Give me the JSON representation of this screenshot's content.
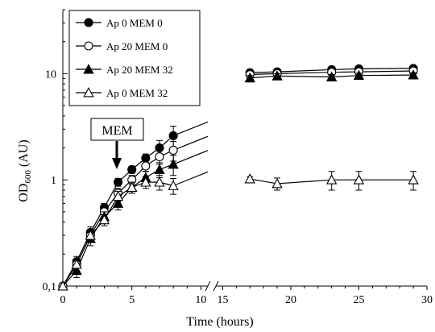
{
  "chart_data": {
    "type": "line",
    "title": "",
    "xlabel": "Time  (hours)",
    "ylabel": "OD600 (AU)",
    "ylabel_main": "OD",
    "ylabel_sub": "600",
    "ylabel_unit": " (AU)",
    "yscale": "log",
    "ylim": [
      0.1,
      40
    ],
    "yticks": [
      {
        "value": 0.1,
        "label": "0,1"
      },
      {
        "value": 1,
        "label": "1"
      },
      {
        "value": 10,
        "label": "10"
      }
    ],
    "x_segments": [
      [
        0,
        10.5
      ],
      [
        14.5,
        30
      ]
    ],
    "xticks": [
      0,
      5,
      10,
      15,
      20,
      25,
      30
    ],
    "grid": false,
    "legend_position": "top-left",
    "annotation": {
      "text": "MEM",
      "x": 4
    },
    "series": [
      {
        "name": "Ap 0 MEM 0",
        "marker": "circle-filled",
        "x": [
          0,
          1,
          2,
          3,
          4,
          5,
          6,
          7,
          8,
          17,
          19,
          23,
          25,
          29
        ],
        "y": [
          0.1,
          0.17,
          0.32,
          0.55,
          0.95,
          1.25,
          1.6,
          2.0,
          2.6,
          10.2,
          10.4,
          10.9,
          11.1,
          11.2
        ],
        "err": [
          0,
          0.02,
          0.04,
          0.05,
          0.08,
          0.1,
          0.15,
          0.35,
          0.6,
          0.7,
          0.6,
          0.7,
          0.6,
          0.6
        ]
      },
      {
        "name": "Ap 20 MEM 0",
        "marker": "circle-open",
        "x": [
          0,
          1,
          2,
          3,
          4,
          5,
          6,
          7,
          8,
          17,
          19,
          23,
          25,
          29
        ],
        "y": [
          0.1,
          0.16,
          0.3,
          0.5,
          0.75,
          1.0,
          1.35,
          1.65,
          1.9,
          9.8,
          10.0,
          10.3,
          10.4,
          10.6
        ],
        "err": [
          0,
          0.02,
          0.04,
          0.05,
          0.08,
          0.1,
          0.15,
          0.25,
          0.4,
          0.6,
          0.6,
          0.6,
          0.6,
          0.6
        ]
      },
      {
        "name": "Ap 20 MEM 32",
        "marker": "triangle-filled",
        "x": [
          0,
          1,
          2,
          3,
          4,
          5,
          6,
          7,
          8,
          17,
          19,
          23,
          25,
          29
        ],
        "y": [
          0.1,
          0.14,
          0.28,
          0.45,
          0.6,
          0.85,
          1.05,
          1.25,
          1.4,
          9.1,
          9.5,
          9.3,
          9.6,
          9.7
        ],
        "err": [
          0,
          0.02,
          0.04,
          0.05,
          0.08,
          0.1,
          0.15,
          0.2,
          0.3,
          0.5,
          0.5,
          0.5,
          0.5,
          0.5
        ]
      },
      {
        "name": "Ap 0 MEM 32",
        "marker": "triangle-open",
        "x": [
          0,
          1,
          2,
          3,
          4,
          5,
          6,
          7,
          8,
          17,
          19,
          23,
          25,
          29
        ],
        "y": [
          0.1,
          0.16,
          0.3,
          0.42,
          0.7,
          0.85,
          0.95,
          0.95,
          0.88,
          1.02,
          0.92,
          1.0,
          1.0,
          1.0
        ],
        "err": [
          0,
          0.02,
          0.04,
          0.05,
          0.08,
          0.1,
          0.12,
          0.15,
          0.15,
          0.05,
          0.12,
          0.2,
          0.2,
          0.2
        ]
      }
    ]
  }
}
